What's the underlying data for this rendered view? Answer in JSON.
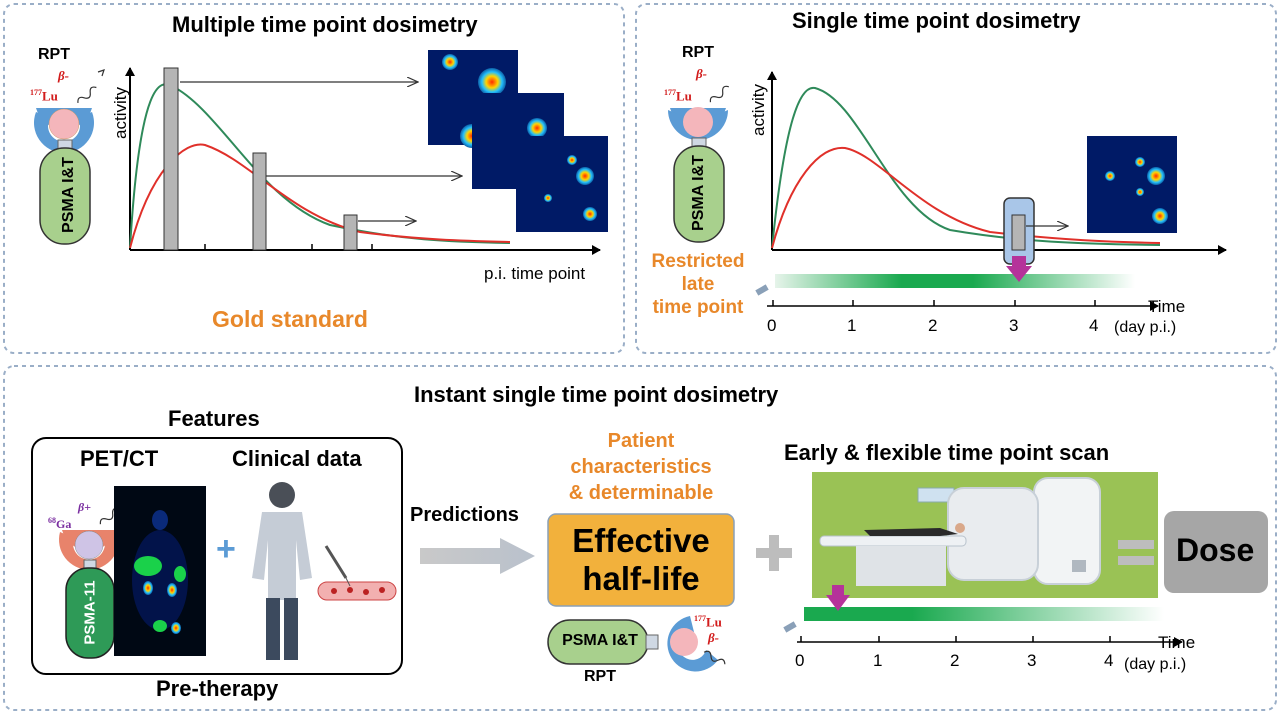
{
  "panels": {
    "multiple": {
      "title": "Multiple time point dosimetry",
      "rpt_label": "RPT",
      "isotope_mass": "177",
      "isotope_symbol": "Lu",
      "beta_label": "β-",
      "carrier_label": "PSMA I&T",
      "y_axis": "activity",
      "x_axis": "p.i. time point",
      "caption": "Gold standard"
    },
    "single": {
      "title": "Single time point dosimetry",
      "rpt_label": "RPT",
      "isotope_mass": "177",
      "isotope_symbol": "Lu",
      "beta_label": "β-",
      "carrier_label": "PSMA I&T",
      "y_axis": "activity",
      "restricted_line1": "Restricted",
      "restricted_line2": "late",
      "restricted_line3": "time point",
      "timeline_label": "Time",
      "timeline_unit": "(day p.i.)",
      "ticks": [
        "0",
        "1",
        "2",
        "3",
        "4"
      ]
    },
    "instant": {
      "title": "Instant single time point dosimetry",
      "features_title": "Features",
      "pet_ct": "PET/CT",
      "clinical_data": "Clinical data",
      "ga_mass": "68",
      "ga_symbol": "Ga",
      "beta_plus": "β+",
      "psma11_label": "PSMA-11",
      "plus_sign": "+",
      "pre_therapy": "Pre-therapy",
      "predictions": "Predictions",
      "patient_line1": "Patient",
      "patient_line2": "characteristics",
      "patient_line3": "& determinable",
      "effective_line1": "Effective",
      "effective_line2": "half-life",
      "carrier_label": "PSMA I&T",
      "isotope_mass": "177",
      "isotope_symbol": "Lu",
      "beta_label": "β-",
      "rpt_label": "RPT",
      "early_scan_title": "Early & flexible time point scan",
      "plus_big": "+",
      "equals": "=",
      "dose": "Dose",
      "timeline_label": "Time",
      "timeline_unit": "(day p.i.)",
      "ticks": [
        "0",
        "1",
        "2",
        "3",
        "4"
      ]
    }
  },
  "colors": {
    "panel_border": "#9aaec7",
    "accent_orange": "#e8882a",
    "red_curve": "#e0302a",
    "green_curve": "#2f8a5a",
    "psma_green": "#a8d08d",
    "receptor_blue": "#5b9bd5",
    "effective_box": "#f2b13c",
    "dose_box": "#a6a6a6",
    "ct_background": "#9ac255",
    "arrow_magenta": "#b5339a",
    "timeline_green": "#1aa94f"
  }
}
